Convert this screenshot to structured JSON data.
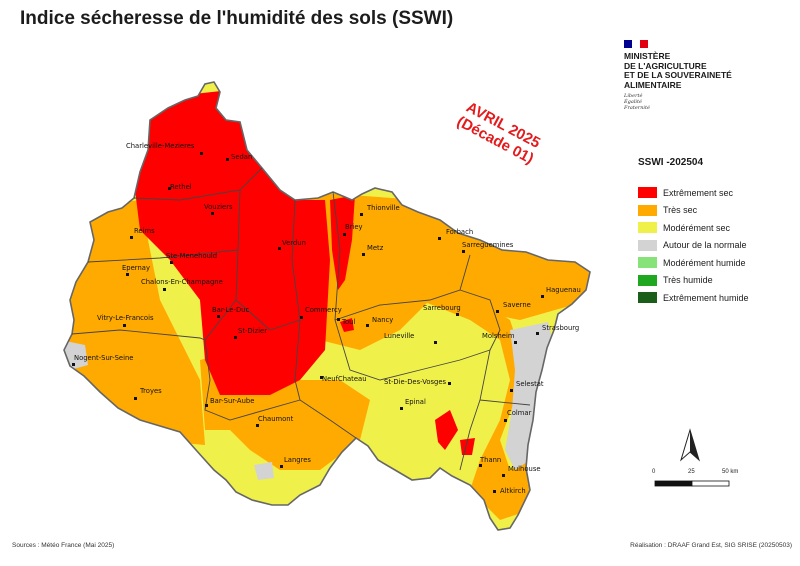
{
  "title": "Indice sécheresse de l'humidité des sols (SSWI)",
  "period": {
    "line1": "AVRIL 2025",
    "line2": "(Décade 01)"
  },
  "ministry": {
    "lines": [
      "MINISTÈRE",
      "DE L'AGRICULTURE",
      "ET DE LA SOUVERAINETÉ",
      "ALIMENTAIRE"
    ],
    "motto": [
      "Liberté",
      "Égalité",
      "Fraternité"
    ],
    "flag_colors": [
      "#000091",
      "#ffffff",
      "#e1000f"
    ]
  },
  "legend": {
    "title": "SSWI -202504",
    "items": [
      {
        "label": "Extrêmement sec",
        "color": "#ff0000"
      },
      {
        "label": "Très sec",
        "color": "#ffaa00"
      },
      {
        "label": "Modérément sec",
        "color": "#f0f04a"
      },
      {
        "label": "Autour de la normale",
        "color": "#d3d3d3"
      },
      {
        "label": "Modérément humide",
        "color": "#87e27a"
      },
      {
        "label": "Très humide",
        "color": "#1fa81f"
      },
      {
        "label": "Extrêmement humide",
        "color": "#1a5e1a"
      }
    ]
  },
  "scale": {
    "labels": [
      "0",
      "25",
      "50 km"
    ]
  },
  "north_arrow": "north-arrow-icon",
  "footer": {
    "sources": "Sources : Météo France (Mai 2025)",
    "credit": "Réalisation : DRAAF Grand Est, SIG SRISE (20250503)"
  },
  "cities": [
    "Charleville-Mezieres",
    "Sedan",
    "Rethel",
    "Vouziers",
    "Thionville",
    "Forbach",
    "Reims",
    "Ste-Menehould",
    "Verdun",
    "Briey",
    "Metz",
    "Sarreguemines",
    "Epernay",
    "Chalons-En-Champagne",
    "Haguenau",
    "Bar-Le-Duc",
    "Commercy",
    "Saverne",
    "Sarrebourg",
    "Vitry-Le-Francois",
    "Toul",
    "Nancy",
    "St-Dizier",
    "Strasbourg",
    "Luneville",
    "Molsheim",
    "Nogent-Sur-Seine",
    "NeufChateau",
    "St-Die-Des-Vosges",
    "Selestat",
    "Troyes",
    "Bar-Sur-Aube",
    "Epinal",
    "Colmar",
    "Chaumont",
    "Langres",
    "Thann",
    "Mulhouse",
    "Altkirch"
  ]
}
